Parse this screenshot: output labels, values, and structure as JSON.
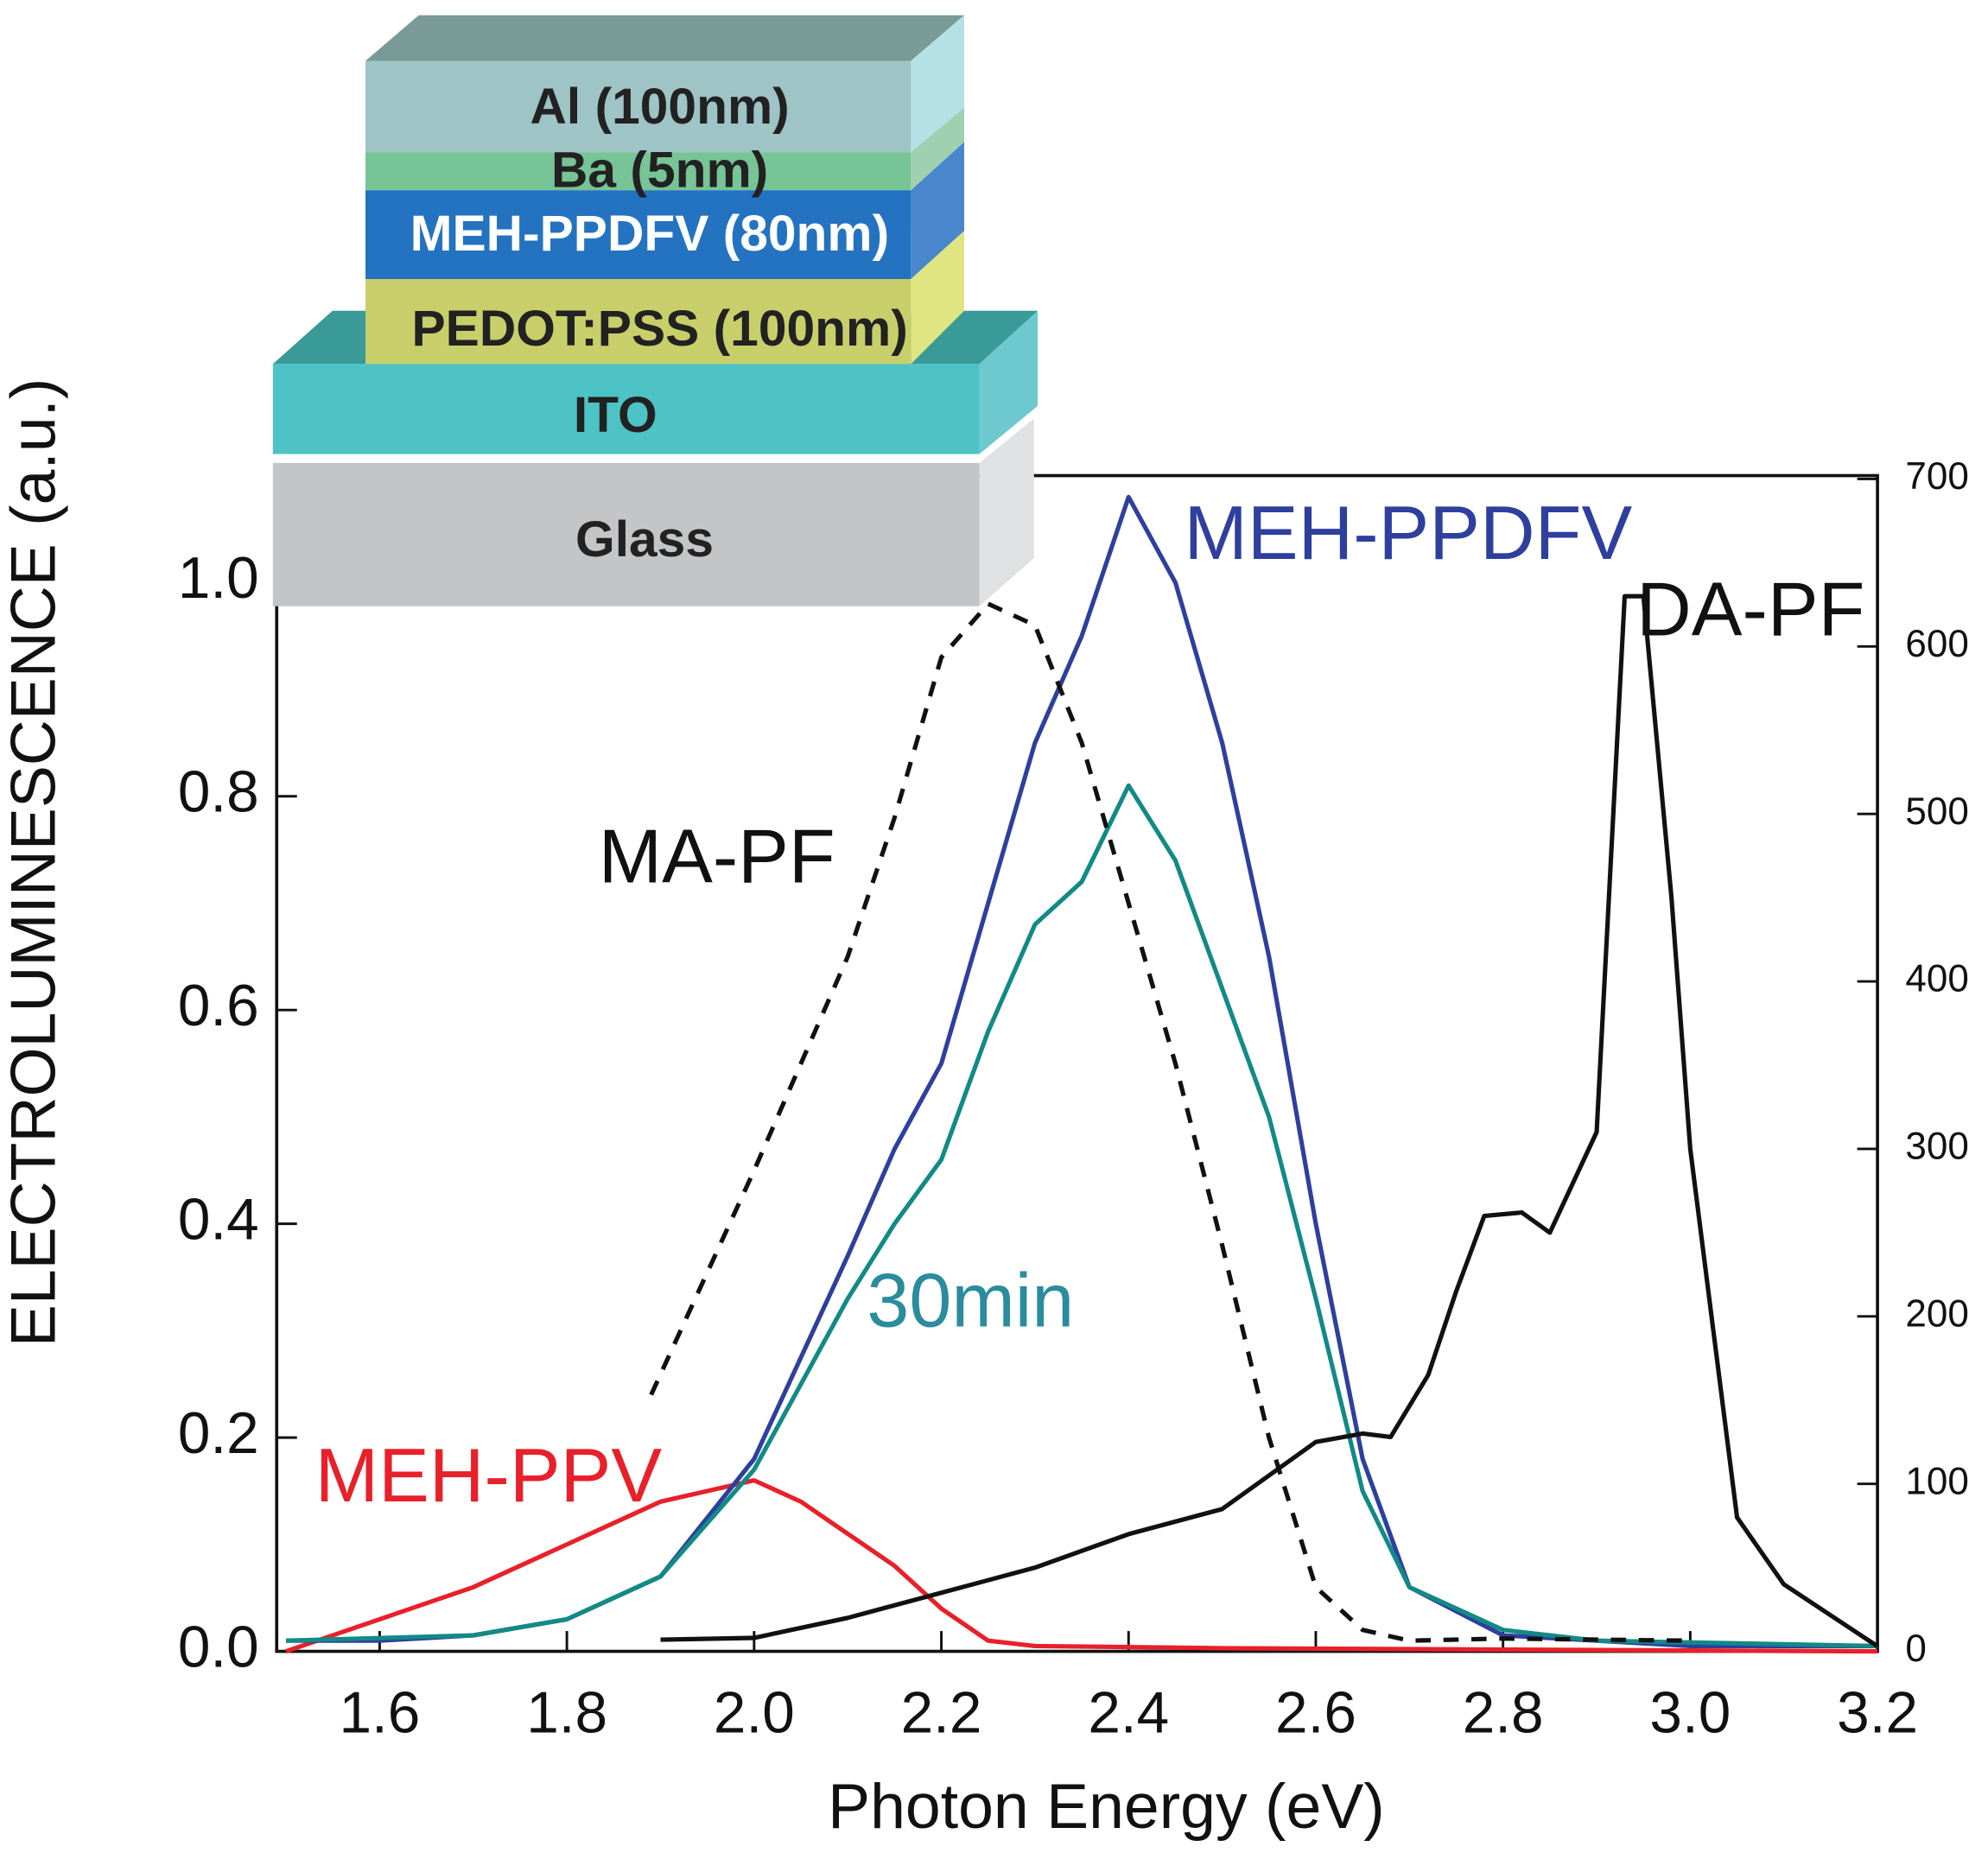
{
  "chart_data": {
    "type": "line",
    "xlabel": "Photon Energy (eV)",
    "ylabel": "ELECTROLUMINESCENCE (a.u.)",
    "xlim": [
      1.49,
      3.2
    ],
    "ylim": [
      0,
      1.1
    ],
    "y2lim": [
      0,
      702
    ],
    "xticks": [
      1.6,
      1.8,
      {
        "value": 2.0,
        "label": "2.0"
      },
      2.2,
      2.4,
      2.6,
      2.8,
      {
        "value": 3.0,
        "label": "3.0"
      },
      3.2
    ],
    "yticks": [
      {
        "value": 0,
        "label": "0.0"
      },
      0.2,
      0.4,
      0.6,
      0.8,
      {
        "value": 1,
        "label": "1.0"
      }
    ],
    "y2ticks": [
      0,
      100,
      200,
      300,
      400,
      500,
      600,
      700
    ],
    "device_layers": [
      "Al (100nm)",
      "Ba (5nm)",
      "MEH-PPDFV (80nm)",
      "PEDOT:PSS (100nm)",
      "ITO",
      "Glass"
    ],
    "series": [
      {
        "name": "MEH-PPV",
        "color": "#e8202a",
        "x": [
          1.5,
          1.6,
          1.7,
          1.8,
          1.9,
          1.95,
          2.0,
          2.05,
          2.1,
          2.15,
          2.2,
          2.25,
          2.3,
          2.5,
          3.2
        ],
        "values": [
          0.0,
          0.03,
          0.06,
          0.1,
          0.14,
          0.15,
          0.16,
          0.14,
          0.11,
          0.08,
          0.04,
          0.01,
          0.005,
          0.003,
          0.0
        ]
      },
      {
        "name": "MEH-PPDFV",
        "color": "#2e3f9e",
        "x": [
          1.5,
          1.6,
          1.7,
          1.8,
          1.9,
          2.0,
          2.1,
          2.15,
          2.2,
          2.25,
          2.3,
          2.35,
          2.4,
          2.45,
          2.5,
          2.55,
          2.6,
          2.65,
          2.7,
          2.8,
          2.9,
          3.0,
          3.2
        ],
        "values": [
          0.01,
          0.01,
          0.015,
          0.03,
          0.07,
          0.18,
          0.37,
          0.47,
          0.55,
          0.7,
          0.85,
          0.95,
          1.08,
          1.0,
          0.85,
          0.65,
          0.4,
          0.18,
          0.06,
          0.015,
          0.01,
          0.005,
          0.005
        ]
      },
      {
        "name": "30min",
        "color": "#128a86",
        "label_color": "#2a8c9c",
        "x": [
          1.5,
          1.7,
          1.8,
          1.9,
          2.0,
          2.1,
          2.15,
          2.2,
          2.25,
          2.3,
          2.35,
          2.4,
          2.45,
          2.5,
          2.55,
          2.6,
          2.65,
          2.7,
          2.8,
          2.9,
          3.2
        ],
        "values": [
          0.01,
          0.015,
          0.03,
          0.07,
          0.17,
          0.33,
          0.4,
          0.46,
          0.58,
          0.68,
          0.72,
          0.81,
          0.74,
          0.62,
          0.5,
          0.33,
          0.15,
          0.06,
          0.02,
          0.01,
          0.005
        ]
      },
      {
        "name": "MA-PF",
        "color": "#111111",
        "dashed": true,
        "x": [
          1.89,
          2.0,
          2.1,
          2.15,
          2.2,
          2.25,
          2.3,
          2.35,
          2.4,
          2.45,
          2.5,
          2.55,
          2.6,
          2.65,
          2.7,
          2.8,
          3.0
        ],
        "values": [
          0.24,
          0.45,
          0.65,
          0.78,
          0.93,
          0.98,
          0.96,
          0.85,
          0.7,
          0.55,
          0.38,
          0.2,
          0.06,
          0.02,
          0.01,
          0.012,
          0.01
        ]
      },
      {
        "name": "DA-PF",
        "color": "#111111",
        "axis": "y2",
        "x": [
          1.9,
          2.0,
          2.1,
          2.2,
          2.3,
          2.4,
          2.5,
          2.6,
          2.65,
          2.68,
          2.72,
          2.75,
          2.78,
          2.82,
          2.85,
          2.9,
          2.93,
          2.95,
          2.98,
          3.0,
          3.05,
          3.1,
          3.2
        ],
        "values": [
          7,
          8,
          20,
          35,
          50,
          70,
          85,
          125,
          130,
          128,
          165,
          215,
          260,
          262,
          250,
          310,
          630,
          630,
          450,
          300,
          80,
          40,
          3
        ]
      }
    ]
  }
}
